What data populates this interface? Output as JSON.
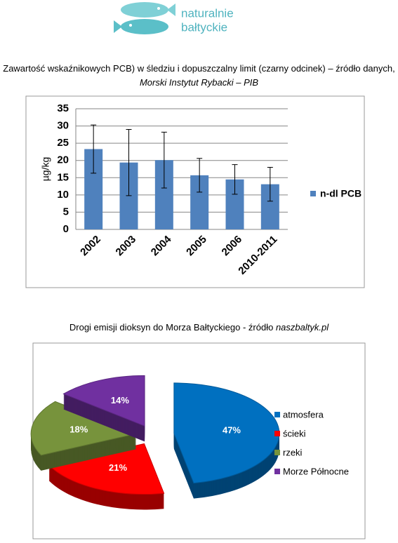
{
  "logo": {
    "line1": "naturalnie",
    "line2": "bałtyckie"
  },
  "chart_data": [
    {
      "type": "bar",
      "title": "Zawartość wskaźnikowych PCB) w śledziu i dopuszczalny limit (czarny odcinek) – źródło danych,",
      "title_source": "Morski Instytut Rybacki – PIB",
      "y_label": "µg/kg",
      "categories": [
        "2002",
        "2003",
        "2004",
        "2005",
        "2006",
        "2010-2011"
      ],
      "series": [
        {
          "name": "n-dl PCB",
          "color": "#4f81bd",
          "values": [
            23.3,
            19.4,
            20.1,
            15.7,
            14.5,
            13.1
          ],
          "errors": [
            7.0,
            9.6,
            8.1,
            4.9,
            4.3,
            4.9
          ]
        }
      ],
      "ylim": [
        0,
        35
      ],
      "yticks": [
        0,
        5,
        10,
        15,
        20,
        25,
        30,
        35
      ],
      "grid": true,
      "legend": "right"
    },
    {
      "type": "pie",
      "title": "Drogi emisji dioksyn do Morza Bałtyckiego - źródło",
      "title_source": "naszbaltyk.pl",
      "categories": [
        "atmosfera",
        "ścieki",
        "rzeki",
        "Morze Północne"
      ],
      "values": [
        47,
        21,
        18,
        14
      ],
      "value_labels": [
        "47%",
        "21%",
        "18%",
        "14%"
      ],
      "colors": [
        "#0070c0",
        "#ff0000",
        "#77933c",
        "#7030a0"
      ],
      "legend": "right"
    }
  ]
}
